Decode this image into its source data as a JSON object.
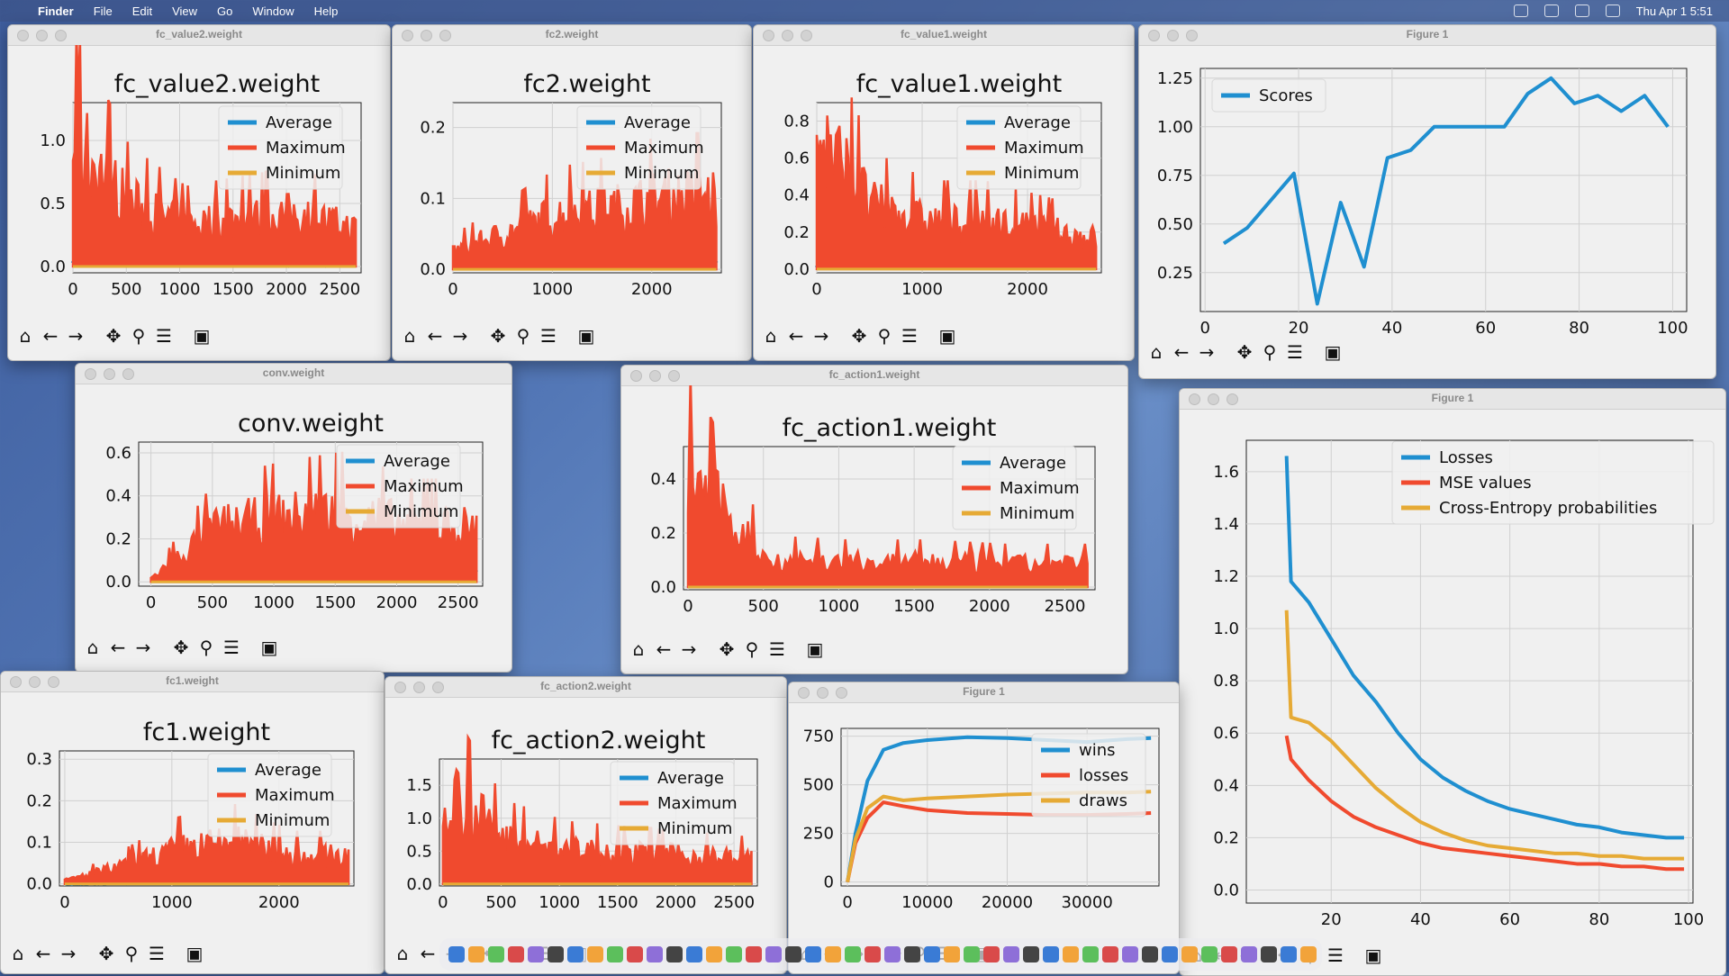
{
  "menubar": {
    "apple": "",
    "items": [
      "Finder",
      "File",
      "Edit",
      "View",
      "Go",
      "Window",
      "Help"
    ],
    "clock": "Thu Apr 1  5:51"
  },
  "toolbar_icons": [
    "home-icon",
    "back-icon",
    "forward-icon",
    "pan-icon",
    "zoom-icon",
    "configure-icon",
    "save-icon"
  ],
  "colors": {
    "blue": "#1f8fd0",
    "red": "#f04a2e",
    "orange": "#e6aa35"
  },
  "windows": [
    {
      "id": "w1",
      "title": "fc_value2.weight"
    },
    {
      "id": "w2",
      "title": "fc2.weight"
    },
    {
      "id": "w3",
      "title": "fc_value1.weight"
    },
    {
      "id": "w4",
      "title": "Figure 1"
    },
    {
      "id": "w5",
      "title": "conv.weight"
    },
    {
      "id": "w6",
      "title": "fc_action1.weight"
    },
    {
      "id": "w7",
      "title": "Figure 1"
    },
    {
      "id": "w8",
      "title": "fc1.weight"
    },
    {
      "id": "w9",
      "title": "fc_action2.weight"
    },
    {
      "id": "w10",
      "title": "Figure 1"
    }
  ],
  "chart_data": [
    {
      "type": "line",
      "title": "fc_value2.weight",
      "xticks": [
        "0",
        "500",
        "1000",
        "1500",
        "2000",
        "2500"
      ],
      "yticks": [
        "0.0",
        "0.5",
        "1.0"
      ],
      "xlim": [
        0,
        2700
      ],
      "ylim": [
        -0.05,
        1.3
      ],
      "legend": [
        "Average",
        "Maximum",
        "Minimum"
      ],
      "legend_pos": "upper right",
      "series": [
        {
          "name": "Average",
          "values": [
            0.03,
            0.02,
            0.02,
            0.02,
            0.02,
            0.02
          ]
        },
        {
          "name": "Maximum",
          "values": [
            1.2,
            0.6,
            0.4,
            0.45,
            0.5,
            0.35
          ]
        },
        {
          "name": "Minimum",
          "values": [
            0,
            0,
            0,
            0,
            0,
            0
          ]
        }
      ]
    },
    {
      "type": "line",
      "title": "fc2.weight",
      "xticks": [
        "0",
        "1000",
        "2000"
      ],
      "yticks": [
        "0.0",
        "0.1",
        "0.2"
      ],
      "xlim": [
        0,
        2700
      ],
      "ylim": [
        -0.005,
        0.235
      ],
      "legend": [
        "Average",
        "Maximum",
        "Minimum"
      ],
      "legend_pos": "upper right",
      "series": [
        {
          "name": "Average",
          "values": [
            0.005,
            0.008,
            0.01,
            0.012,
            0.013,
            0.013
          ]
        },
        {
          "name": "Maximum",
          "values": [
            0.03,
            0.06,
            0.09,
            0.1,
            0.12,
            0.12
          ]
        },
        {
          "name": "Minimum",
          "values": [
            0,
            0,
            0,
            0,
            0,
            0
          ]
        }
      ]
    },
    {
      "type": "line",
      "title": "fc_value1.weight",
      "xticks": [
        "0",
        "1000",
        "2000"
      ],
      "yticks": [
        "0.0",
        "0.2",
        "0.4",
        "0.6",
        "0.8"
      ],
      "xlim": [
        0,
        2700
      ],
      "ylim": [
        -0.02,
        0.9
      ],
      "legend": [
        "Average",
        "Maximum",
        "Minimum"
      ],
      "legend_pos": "upper right",
      "series": [
        {
          "name": "Average",
          "values": [
            0.02,
            0.02,
            0.02,
            0.02,
            0.02,
            0.02
          ]
        },
        {
          "name": "Maximum",
          "values": [
            0.88,
            0.4,
            0.3,
            0.3,
            0.25,
            0.2
          ]
        },
        {
          "name": "Minimum",
          "values": [
            0,
            0,
            0,
            0,
            0,
            0
          ]
        }
      ]
    },
    {
      "type": "line",
      "title": "",
      "xticks": [
        "0",
        "20",
        "40",
        "60",
        "80",
        "100"
      ],
      "yticks": [
        "0.25",
        "0.50",
        "0.75",
        "1.00",
        "1.25"
      ],
      "xlim": [
        -1,
        103
      ],
      "ylim": [
        0.05,
        1.3
      ],
      "legend": [
        "Scores"
      ],
      "legend_pos": "upper left",
      "series": [
        {
          "name": "Scores",
          "x": [
            4,
            9,
            14,
            19,
            24,
            29,
            34,
            39,
            44,
            49,
            54,
            59,
            64,
            69,
            74,
            79,
            84,
            89,
            94,
            99
          ],
          "values": [
            0.4,
            0.48,
            0.62,
            0.76,
            0.09,
            0.61,
            0.28,
            0.84,
            0.88,
            1.0,
            1.0,
            1.0,
            1.0,
            1.17,
            1.25,
            1.12,
            1.16,
            1.08,
            1.16,
            1.0
          ]
        }
      ]
    },
    {
      "type": "line",
      "title": "conv.weight",
      "xticks": [
        "0",
        "500",
        "1000",
        "1500",
        "2000",
        "2500"
      ],
      "yticks": [
        "0.0",
        "0.2",
        "0.4",
        "0.6"
      ],
      "xlim": [
        -100,
        2700
      ],
      "ylim": [
        -0.02,
        0.65
      ],
      "legend": [
        "Average",
        "Maximum",
        "Minimum"
      ],
      "legend_pos": "upper right",
      "series": [
        {
          "name": "Average",
          "values": [
            0.01,
            0.05,
            0.06,
            0.05,
            0.05,
            0.05
          ]
        },
        {
          "name": "Maximum",
          "values": [
            0.02,
            0.3,
            0.35,
            0.38,
            0.3,
            0.3
          ]
        },
        {
          "name": "Minimum",
          "values": [
            0,
            0,
            0,
            0,
            0,
            0
          ]
        }
      ]
    },
    {
      "type": "line",
      "title": "fc_action1.weight",
      "xticks": [
        "0",
        "500",
        "1000",
        "1500",
        "2000",
        "2500"
      ],
      "yticks": [
        "0.0",
        "0.2",
        "0.4"
      ],
      "xlim": [
        -30,
        2700
      ],
      "ylim": [
        -0.01,
        0.52
      ],
      "legend": [
        "Average",
        "Maximum",
        "Minimum"
      ],
      "legend_pos": "upper right",
      "series": [
        {
          "name": "Average",
          "values": [
            0.01,
            0.01,
            0.01,
            0.01,
            0.01,
            0.01
          ]
        },
        {
          "name": "Maximum",
          "values": [
            0.5,
            0.12,
            0.11,
            0.11,
            0.1,
            0.1
          ]
        },
        {
          "name": "Minimum",
          "values": [
            0,
            0,
            0,
            0,
            0,
            0
          ]
        }
      ]
    },
    {
      "type": "line",
      "title": "",
      "xticks": [
        "20",
        "40",
        "60",
        "80",
        "100"
      ],
      "yticks": [
        "0.0",
        "0.2",
        "0.4",
        "0.6",
        "0.8",
        "1.0",
        "1.2",
        "1.4",
        "1.6"
      ],
      "xlim": [
        1,
        101
      ],
      "ylim": [
        -0.05,
        1.72
      ],
      "legend": [
        "Losses",
        "MSE values",
        "Cross-Entropy probabilities"
      ],
      "legend_pos": "upper right",
      "x": [
        10,
        11,
        15,
        20,
        25,
        30,
        35,
        40,
        45,
        50,
        55,
        60,
        65,
        70,
        75,
        80,
        85,
        90,
        95,
        99
      ],
      "series": [
        {
          "name": "Losses",
          "values": [
            1.66,
            1.18,
            1.1,
            0.96,
            0.82,
            0.72,
            0.6,
            0.5,
            0.43,
            0.38,
            0.34,
            0.31,
            0.29,
            0.27,
            0.25,
            0.24,
            0.22,
            0.21,
            0.2,
            0.2
          ]
        },
        {
          "name": "MSE values",
          "values": [
            0.59,
            0.5,
            0.42,
            0.34,
            0.28,
            0.24,
            0.21,
            0.18,
            0.16,
            0.15,
            0.14,
            0.13,
            0.12,
            0.11,
            0.1,
            0.1,
            0.09,
            0.09,
            0.08,
            0.08
          ]
        },
        {
          "name": "Cross-Entropy probabilities",
          "values": [
            1.07,
            0.66,
            0.64,
            0.57,
            0.48,
            0.39,
            0.32,
            0.26,
            0.22,
            0.19,
            0.17,
            0.16,
            0.15,
            0.14,
            0.14,
            0.13,
            0.13,
            0.12,
            0.12,
            0.12
          ]
        }
      ]
    },
    {
      "type": "line",
      "title": "fc1.weight",
      "xticks": [
        "0",
        "1000",
        "2000"
      ],
      "yticks": [
        "0.0",
        "0.1",
        "0.2",
        "0.3"
      ],
      "xlim": [
        -50,
        2700
      ],
      "ylim": [
        -0.005,
        0.32
      ],
      "legend": [
        "Average",
        "Maximum",
        "Minimum"
      ],
      "legend_pos": "upper right",
      "series": [
        {
          "name": "Average",
          "values": [
            0.002,
            0.005,
            0.007,
            0.008,
            0.008,
            0.008
          ]
        },
        {
          "name": "Maximum",
          "values": [
            0.01,
            0.05,
            0.1,
            0.12,
            0.08,
            0.08
          ]
        },
        {
          "name": "Minimum",
          "values": [
            0,
            0,
            0,
            0,
            0,
            0
          ]
        }
      ]
    },
    {
      "type": "line",
      "title": "fc_action2.weight",
      "xticks": [
        "0",
        "500",
        "1000",
        "1500",
        "2000",
        "2500"
      ],
      "yticks": [
        "0.0",
        "0.5",
        "1.0",
        "1.5"
      ],
      "xlim": [
        -30,
        2700
      ],
      "ylim": [
        -0.03,
        1.9
      ],
      "legend": [
        "Average",
        "Maximum",
        "Minimum"
      ],
      "legend_pos": "upper right",
      "series": [
        {
          "name": "Average",
          "values": [
            0.05,
            0.05,
            0.05,
            0.05,
            0.05,
            0.05
          ]
        },
        {
          "name": "Maximum",
          "values": [
            1.8,
            0.8,
            0.6,
            0.55,
            0.5,
            0.45
          ]
        },
        {
          "name": "Minimum",
          "values": [
            0,
            0,
            0,
            0,
            0,
            0
          ]
        }
      ]
    },
    {
      "type": "line",
      "title": "",
      "xticks": [
        "0",
        "10000",
        "20000",
        "30000"
      ],
      "yticks": [
        "0",
        "250",
        "500",
        "750"
      ],
      "xlim": [
        -800,
        39000
      ],
      "ylim": [
        -20,
        790
      ],
      "legend": [
        "wins",
        "losses",
        "draws"
      ],
      "legend_pos": "upper right",
      "x": [
        0,
        1000,
        2500,
        4500,
        7000,
        10000,
        15000,
        20000,
        25000,
        30000,
        35000,
        38000
      ],
      "series": [
        {
          "name": "wins",
          "values": [
            0,
            250,
            520,
            680,
            715,
            730,
            745,
            740,
            730,
            720,
            735,
            740
          ]
        },
        {
          "name": "losses",
          "values": [
            0,
            200,
            330,
            410,
            390,
            370,
            355,
            350,
            345,
            345,
            350,
            355
          ]
        },
        {
          "name": "draws",
          "values": [
            0,
            220,
            380,
            440,
            420,
            430,
            440,
            450,
            455,
            460,
            460,
            465
          ]
        }
      ]
    }
  ]
}
